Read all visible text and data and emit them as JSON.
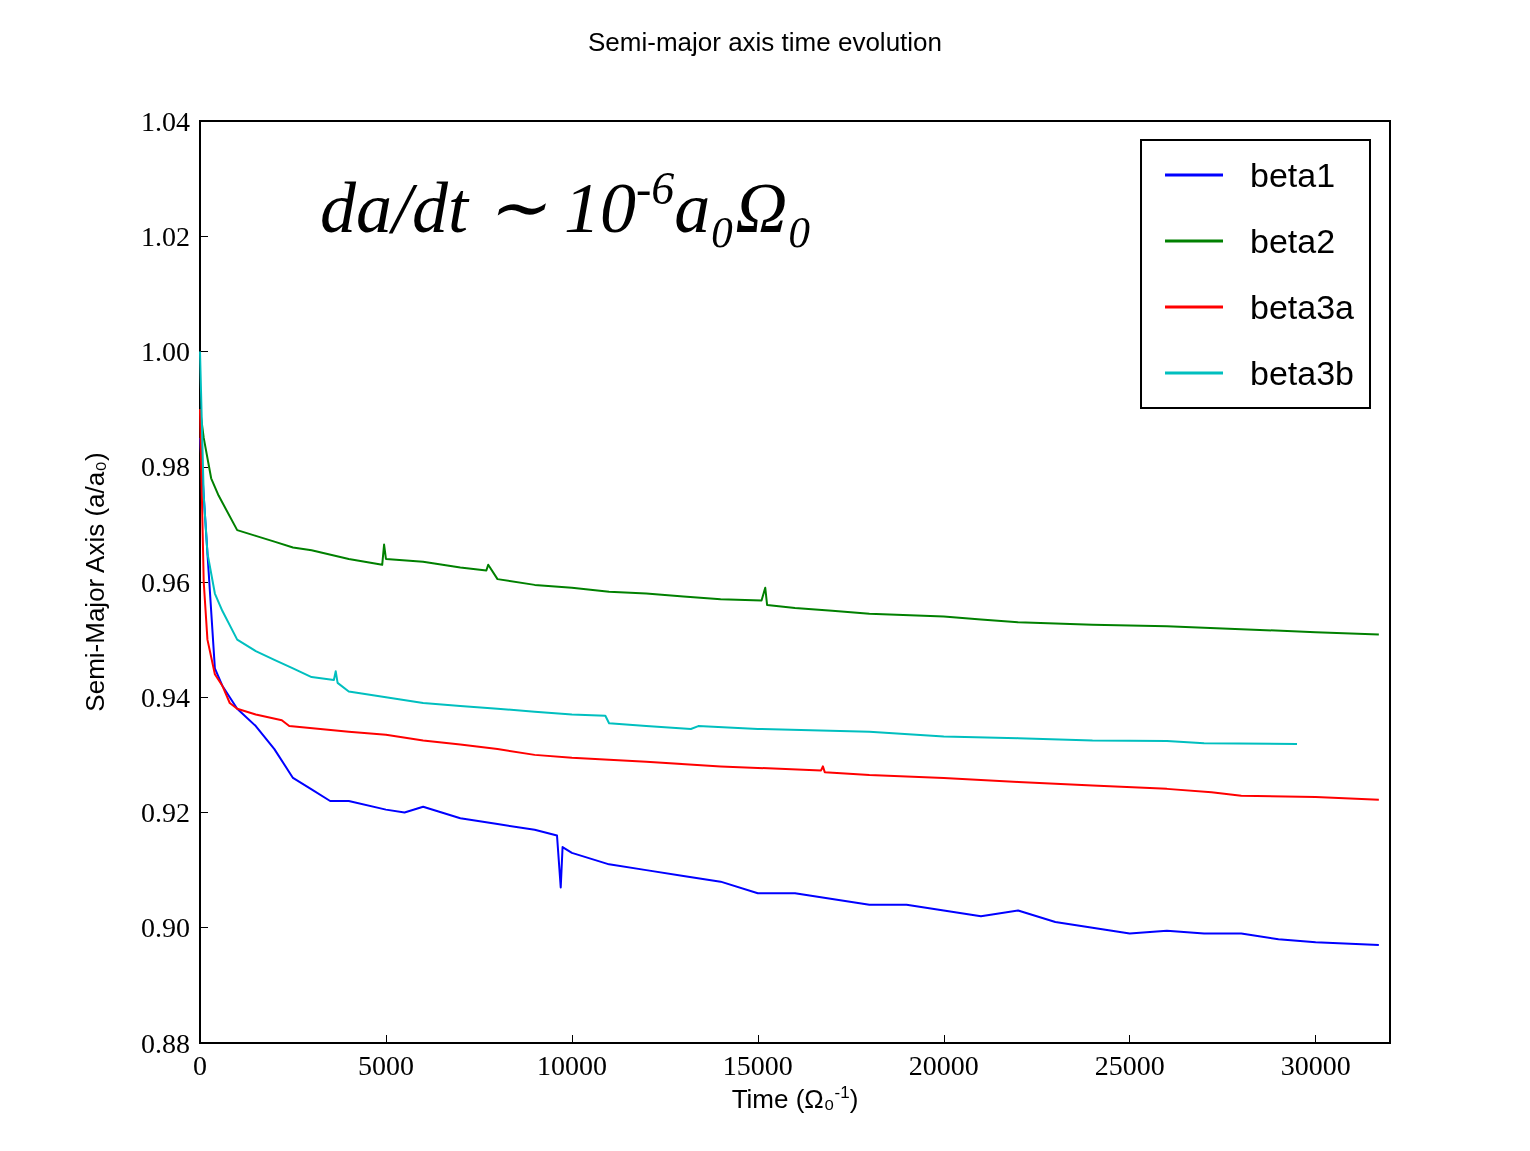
{
  "chart_data": {
    "type": "line",
    "title": "Semi-major axis time evolution",
    "xlabel": "Time (Ω₀$^{-1}$)",
    "ylabel": "Semi-Major Axis (a/a₀)",
    "annotations": [
      "da/dt ∼ 10$^{-6}$a₀Ω₀"
    ],
    "xlim": [
      0,
      32000
    ],
    "xticks": [
      0,
      5000,
      10000,
      15000,
      20000,
      25000,
      30000
    ],
    "ylim": [
      0.88,
      1.04
    ],
    "yticks": [
      0.88,
      {
        "value": 0.9,
        "label": "0.90"
      },
      0.92,
      0.94,
      0.96,
      0.98,
      {
        "value": 1.0,
        "label": "1.00"
      },
      1.02,
      1.04
    ],
    "legend": "top right",
    "series": [
      {
        "name": "beta1",
        "color": "#0000ff",
        "x": [
          0,
          400,
          600,
          800,
          1000,
          1500,
          2000,
          2500,
          3000,
          3500,
          4000,
          5000,
          5500,
          6000,
          7000,
          8000,
          9000,
          9600,
          9700,
          9750,
          10000,
          11000,
          12000,
          13000,
          14000,
          15000,
          16000,
          17000,
          18000,
          19000,
          20000,
          21000,
          22000,
          23000,
          24000,
          25000,
          26000,
          27000,
          28000,
          29000,
          30000,
          31700
        ],
        "values": [
          0.985,
          0.945,
          0.942,
          0.94,
          0.938,
          0.935,
          0.931,
          0.926,
          0.924,
          0.922,
          0.922,
          0.9205,
          0.92,
          0.921,
          0.919,
          0.918,
          0.917,
          0.916,
          0.907,
          0.914,
          0.913,
          0.911,
          0.91,
          0.909,
          0.908,
          0.906,
          0.906,
          0.905,
          0.904,
          0.904,
          0.903,
          0.902,
          0.903,
          0.901,
          0.9,
          0.899,
          0.8995,
          0.899,
          0.899,
          0.898,
          0.8975,
          0.897
        ]
      },
      {
        "name": "beta2",
        "color": "#008000",
        "x": [
          0,
          100,
          300,
          500,
          1000,
          1500,
          2000,
          2500,
          3000,
          4000,
          4900,
          4950,
          5000,
          6000,
          7000,
          7700,
          7750,
          8000,
          9000,
          10000,
          11000,
          12000,
          13000,
          14000,
          15100,
          15200,
          15250,
          16000,
          17000,
          18000,
          20000,
          21000,
          22000,
          24000,
          26000,
          28000,
          30000,
          31700
        ],
        "values": [
          0.99,
          0.985,
          0.978,
          0.975,
          0.969,
          0.968,
          0.967,
          0.966,
          0.9655,
          0.964,
          0.963,
          0.9665,
          0.964,
          0.9635,
          0.9625,
          0.962,
          0.963,
          0.9605,
          0.9595,
          0.959,
          0.9583,
          0.958,
          0.9575,
          0.957,
          0.9568,
          0.959,
          0.956,
          0.9555,
          0.955,
          0.9545,
          0.954,
          0.9535,
          0.953,
          0.9526,
          0.9523,
          0.9518,
          0.9513,
          0.9509
        ]
      },
      {
        "name": "beta3a",
        "color": "#ff0000",
        "x": [
          0,
          100,
          200,
          400,
          600,
          800,
          1000,
          1500,
          2200,
          2400,
          4000,
          5000,
          6000,
          7000,
          8000,
          9000,
          10000,
          12000,
          14000,
          16700,
          16750,
          16800,
          18000,
          20000,
          22000,
          24000,
          26000,
          27200,
          28000,
          30000,
          31700
        ],
        "values": [
          0.99,
          0.96,
          0.95,
          0.944,
          0.942,
          0.939,
          0.938,
          0.937,
          0.936,
          0.935,
          0.934,
          0.9335,
          0.9325,
          0.9318,
          0.931,
          0.93,
          0.9295,
          0.9288,
          0.928,
          0.9273,
          0.928,
          0.927,
          0.9265,
          0.926,
          0.9253,
          0.9247,
          0.9241,
          0.9235,
          0.9229,
          0.9227,
          0.9222
        ]
      },
      {
        "name": "beta3b",
        "color": "#00bfbf",
        "x": [
          0,
          100,
          200,
          400,
          600,
          1000,
          1500,
          2000,
          2500,
          3000,
          3600,
          3650,
          3700,
          4000,
          5000,
          6000,
          7000,
          8000,
          9000,
          10000,
          10900,
          11000,
          12000,
          13200,
          13400,
          15000,
          18000,
          20000,
          22000,
          24000,
          26000,
          27000,
          29500
        ],
        "values": [
          1.0,
          0.975,
          0.965,
          0.958,
          0.955,
          0.95,
          0.948,
          0.9465,
          0.945,
          0.9435,
          0.943,
          0.9445,
          0.9425,
          0.941,
          0.94,
          0.939,
          0.9385,
          0.938,
          0.9375,
          0.937,
          0.9368,
          0.9355,
          0.935,
          0.9345,
          0.935,
          0.9345,
          0.934,
          0.9332,
          0.9329,
          0.9325,
          0.9324,
          0.932,
          0.9319
        ]
      }
    ]
  }
}
